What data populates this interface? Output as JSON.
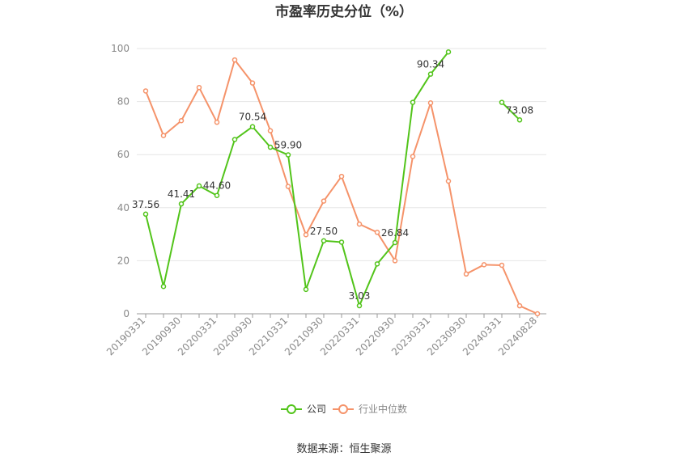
{
  "chart_data": {
    "type": "line",
    "title": "市盈率历史分位（%）",
    "source": "数据来源：恒生聚源",
    "ylim": [
      0,
      100
    ],
    "yticks": [
      0,
      20,
      40,
      60,
      80,
      100
    ],
    "grid": true,
    "legend_position": "bottom",
    "x_tick_labels": [
      "20190331",
      "20190930",
      "20200331",
      "20200930",
      "20210331",
      "20210930",
      "20220331",
      "20220930",
      "20230331",
      "20230930",
      "20240331",
      "20240828"
    ],
    "series": [
      {
        "name": "公司",
        "color": "#52c41a",
        "values": [
          37.56,
          10.3,
          41.41,
          48.2,
          44.6,
          65.7,
          70.54,
          62.8,
          59.9,
          9.2,
          27.5,
          27.0,
          3.03,
          18.8,
          26.84,
          79.7,
          90.34,
          98.7,
          null,
          null,
          79.7,
          73.08,
          null
        ],
        "data_labels": {
          "0": "37.56",
          "2": "41.41",
          "4": "44.60",
          "6": "70.54",
          "8": "59.90",
          "10": "27.50",
          "12": "3.03",
          "14": "26.84",
          "16": "90.34",
          "21": "73.08"
        }
      },
      {
        "name": "行业中位数",
        "color": "#f5936a",
        "values": [
          84.0,
          67.2,
          72.8,
          85.3,
          72.2,
          95.7,
          87.0,
          69.0,
          48.0,
          29.8,
          42.5,
          51.8,
          33.8,
          30.7,
          20.0,
          59.3,
          79.5,
          50.0,
          15.0,
          18.5,
          18.3,
          3.0,
          0.0
        ]
      }
    ]
  }
}
